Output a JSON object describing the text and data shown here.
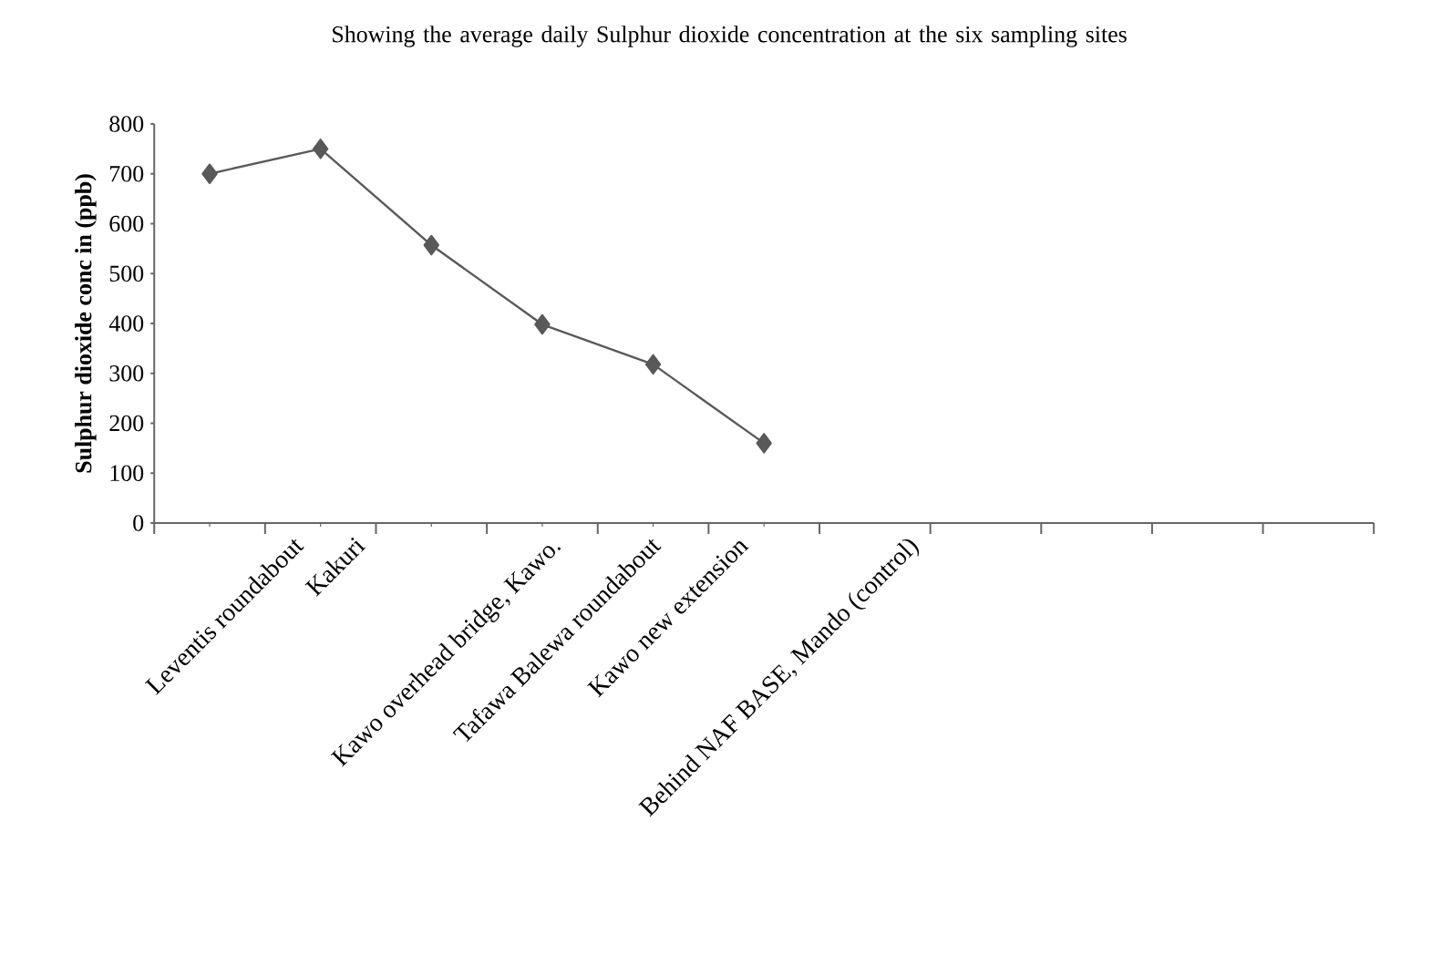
{
  "chart_data": {
    "type": "line",
    "title": "Showing the average daily Sulphur dioxide concentration at the six sampling sites",
    "ylabel": "Sulphur dioxide conc in (ppb)",
    "categories": [
      "Leventis roundabout",
      "Kakuri",
      "Kawo overhead bridge, Kawo.",
      "Tafawa Balewa roundabout",
      "Kawo new extension",
      "Behind NAF BASE, Mando (control)",
      null,
      null,
      null,
      null,
      null
    ],
    "series": [
      {
        "color": "#595959",
        "values": [
          700,
          750,
          557,
          398,
          318,
          160,
          null,
          null,
          null,
          null,
          null
        ]
      }
    ],
    "ylim": [
      0,
      800
    ],
    "yticks": [
      0,
      100,
      200,
      300,
      400,
      500,
      600,
      700,
      800
    ],
    "marker": "diamond",
    "line_style": "solid"
  }
}
